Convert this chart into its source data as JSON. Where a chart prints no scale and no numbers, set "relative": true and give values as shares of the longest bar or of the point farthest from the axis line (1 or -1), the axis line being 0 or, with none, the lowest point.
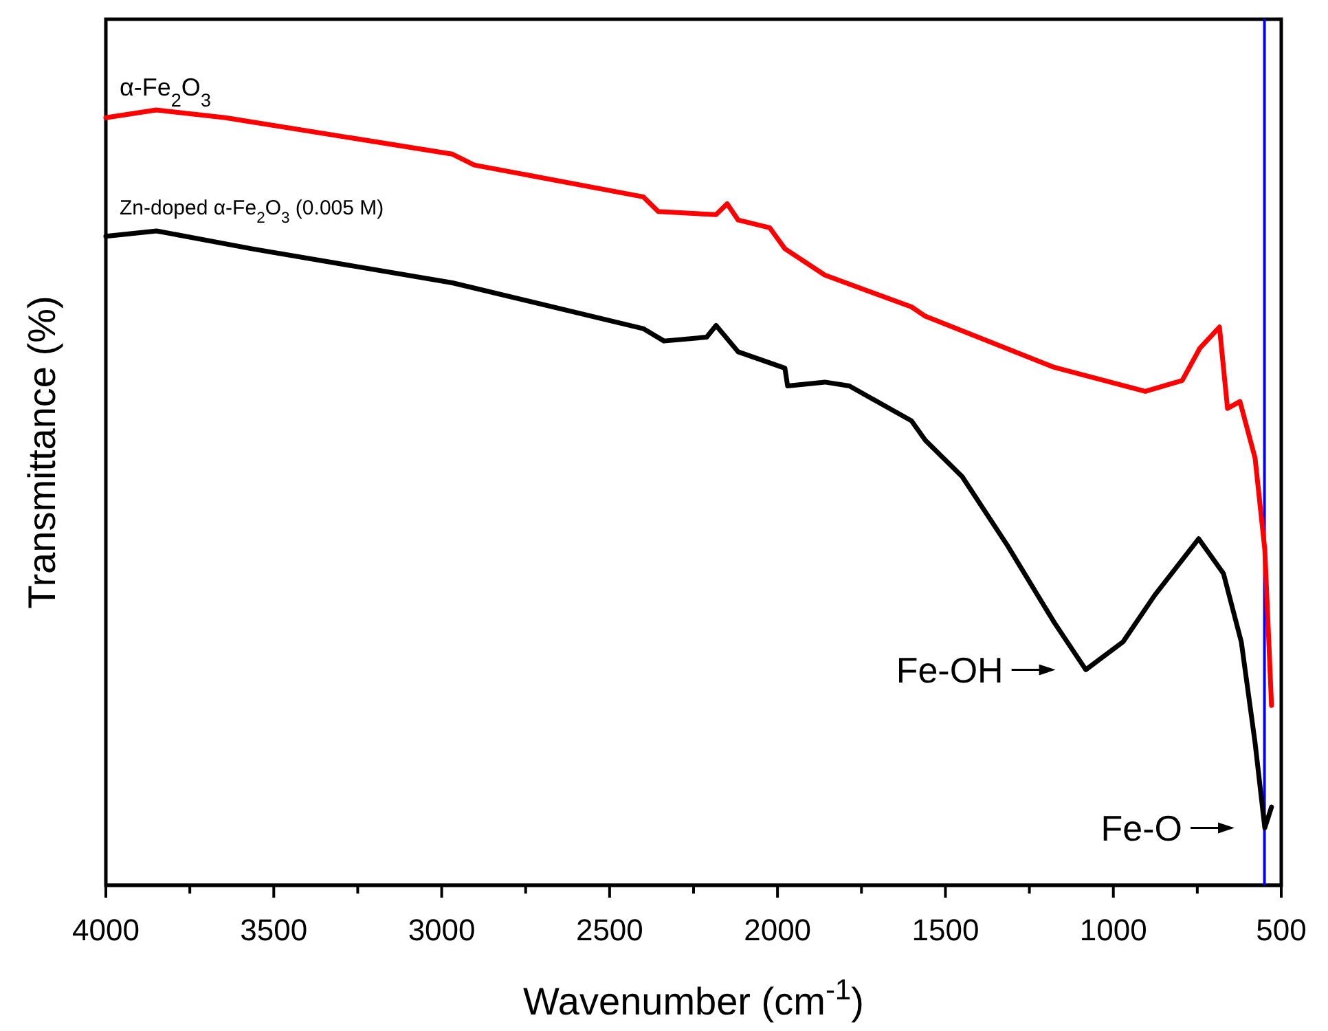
{
  "chart_data": {
    "type": "line",
    "relative": true,
    "xlabel": "Wavenumber (cm$^{-1}$)",
    "ylabel": "Transmittance (%)",
    "xlim": [
      4000,
      500
    ],
    "xticks": [
      4000,
      {
        "value": 3750,
        "label": null
      },
      3500,
      {
        "value": 3250,
        "label": null
      },
      3000,
      {
        "value": 2750,
        "label": null
      },
      2500,
      {
        "value": 2250,
        "label": null
      },
      2000,
      {
        "value": 1750,
        "label": null
      },
      1500,
      {
        "value": 1250,
        "label": null
      },
      1000,
      {
        "value": 750,
        "label": null
      },
      500
    ],
    "line_style": "solid",
    "series": [
      {
        "name": "α-Fe$_{2}$O$_{3}$",
        "color": "#ff0000",
        "x": [
          4000,
          3850,
          3644,
          2968,
          2903,
          2400,
          2355,
          2183,
          2150,
          2117,
          2023,
          1978,
          1859,
          1601,
          1560,
          1176,
          905,
          795,
          742,
          684,
          660,
          623,
          578,
          549,
          537,
          529
        ],
        "values": [
          0.99,
          1.0,
          0.99,
          0.943,
          0.929,
          0.888,
          0.869,
          0.865,
          0.879,
          0.858,
          0.848,
          0.821,
          0.787,
          0.746,
          0.734,
          0.668,
          0.637,
          0.651,
          0.693,
          0.72,
          0.615,
          0.624,
          0.551,
          0.433,
          0.314,
          0.232
        ]
      },
      {
        "name": "Zn-doped α-Fe$_{2}$O$_{3}$ (0.005 M)",
        "color": "#000000",
        "x": [
          4000,
          3849,
          3566,
          2968,
          2400,
          2338,
          2211,
          2183,
          2117,
          1978,
          1970,
          1859,
          1786,
          1601,
          1560,
          1450,
          1315,
          1176,
          1082,
          971,
          877,
          746,
          672,
          619,
          578,
          549,
          529
        ],
        "values": [
          0.837,
          0.844,
          0.821,
          0.777,
          0.718,
          0.702,
          0.707,
          0.722,
          0.688,
          0.667,
          0.644,
          0.649,
          0.644,
          0.599,
          0.574,
          0.527,
          0.438,
          0.339,
          0.278,
          0.314,
          0.374,
          0.447,
          0.402,
          0.314,
          0.184,
          0.074,
          0.101
        ]
      }
    ],
    "ref_lines": [
      {
        "axis": "x",
        "value": 550,
        "color": "#0000ff"
      }
    ],
    "annotations": [
      {
        "text": "Fe-OH",
        "x": 1082,
        "y": 0.278
      },
      {
        "text": "Fe-O",
        "x": 549,
        "y": 0.074
      }
    ]
  }
}
